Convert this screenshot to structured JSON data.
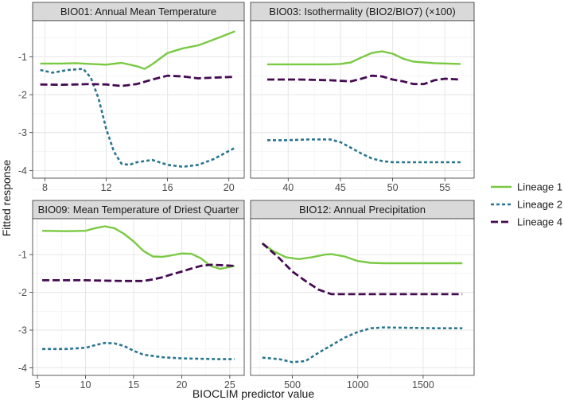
{
  "chart_data": {
    "type": "line",
    "xlabel": "BIOCLIM predictor value",
    "ylabel": "Fitted response",
    "y_ticks": [
      -1,
      -2,
      -3,
      -4
    ],
    "legend": {
      "placement": "right",
      "entries": [
        {
          "name": "Lineage 1",
          "color": "#7ac943",
          "dash": "solid"
        },
        {
          "name": "Lineage 2",
          "color": "#2a7590",
          "dash": "dotted"
        },
        {
          "name": "Lineage 4",
          "color": "#440a52",
          "dash": "dashed"
        }
      ]
    },
    "panels": [
      {
        "title": "BIO01: Annual Mean Temperature",
        "xlim": [
          7.2,
          21
        ],
        "ylim": [
          -4.2,
          -0.05
        ],
        "x_ticks": [
          8,
          12,
          16,
          20
        ],
        "series": [
          {
            "name": "Lineage 1",
            "x": [
              7.7,
              9,
              10,
              11,
              12,
              13,
              14,
              14.5,
              15,
              16,
              17,
              18,
              19,
              20.4
            ],
            "y": [
              -1.18,
              -1.18,
              -1.17,
              -1.19,
              -1.21,
              -1.16,
              -1.25,
              -1.32,
              -1.2,
              -0.9,
              -0.78,
              -0.7,
              -0.55,
              -0.33
            ]
          },
          {
            "name": "Lineage 2",
            "x": [
              7.7,
              8.5,
              9.5,
              10.5,
              11,
              11.5,
              12,
              12.5,
              13,
              13.5,
              14,
              15,
              16,
              17,
              18,
              19,
              20.4
            ],
            "y": [
              -1.35,
              -1.42,
              -1.35,
              -1.32,
              -1.55,
              -2.1,
              -2.9,
              -3.5,
              -3.82,
              -3.85,
              -3.78,
              -3.72,
              -3.85,
              -3.9,
              -3.85,
              -3.7,
              -3.4
            ]
          },
          {
            "name": "Lineage 4",
            "x": [
              7.7,
              9,
              10,
              11,
              12,
              13,
              14,
              15,
              16,
              17,
              18,
              19,
              20.4
            ],
            "y": [
              -1.73,
              -1.74,
              -1.73,
              -1.72,
              -1.73,
              -1.77,
              -1.72,
              -1.6,
              -1.5,
              -1.52,
              -1.57,
              -1.55,
              -1.53
            ]
          }
        ]
      },
      {
        "title": "BIO03: Isothermality (BIO2/BIO7) (×100)",
        "xlim": [
          36.4,
          57.8
        ],
        "ylim": [
          -4.2,
          -0.05
        ],
        "x_ticks": [
          40,
          45,
          50,
          55
        ],
        "series": [
          {
            "name": "Lineage 1",
            "x": [
              38,
              41,
              44,
              45,
              46,
              47,
              48,
              49,
              50,
              51,
              52,
              54,
              56.5
            ],
            "y": [
              -1.2,
              -1.2,
              -1.2,
              -1.19,
              -1.15,
              -1.02,
              -0.9,
              -0.86,
              -0.92,
              -1.05,
              -1.13,
              -1.17,
              -1.19
            ]
          },
          {
            "name": "Lineage 2",
            "x": [
              38,
              40,
              42,
              44,
              45,
              46,
              47,
              48,
              49,
              50,
              52,
              54,
              56.5
            ],
            "y": [
              -3.2,
              -3.2,
              -3.18,
              -3.18,
              -3.25,
              -3.4,
              -3.55,
              -3.68,
              -3.75,
              -3.78,
              -3.78,
              -3.78,
              -3.78
            ]
          },
          {
            "name": "Lineage 4",
            "x": [
              38,
              41,
              44,
              46,
              47,
              48,
              49,
              50,
              51,
              52,
              53,
              54,
              55,
              56.5
            ],
            "y": [
              -1.6,
              -1.6,
              -1.62,
              -1.65,
              -1.58,
              -1.5,
              -1.52,
              -1.6,
              -1.65,
              -1.72,
              -1.72,
              -1.62,
              -1.58,
              -1.6
            ]
          }
        ]
      },
      {
        "title": "BIO09: Mean Temperature of Driest Quarter",
        "xlim": [
          4.5,
          26.5
        ],
        "ylim": [
          -4.2,
          -0.05
        ],
        "x_ticks": [
          5,
          10,
          15,
          20,
          25
        ],
        "series": [
          {
            "name": "Lineage 1",
            "x": [
              5.5,
              8,
              10,
              11,
              12,
              13,
              14,
              15,
              16,
              17,
              18,
              19,
              20,
              21,
              22,
              23,
              24,
              25.5
            ],
            "y": [
              -0.37,
              -0.38,
              -0.37,
              -0.3,
              -0.25,
              -0.3,
              -0.45,
              -0.65,
              -0.9,
              -1.05,
              -1.06,
              -1.02,
              -0.97,
              -0.98,
              -1.1,
              -1.3,
              -1.38,
              -1.3
            ]
          },
          {
            "name": "Lineage 2",
            "x": [
              5.5,
              8,
              10,
              11,
              12,
              13,
              14,
              15,
              16,
              18,
              20,
              22,
              24,
              25.5
            ],
            "y": [
              -3.5,
              -3.5,
              -3.47,
              -3.4,
              -3.34,
              -3.35,
              -3.42,
              -3.55,
              -3.65,
              -3.72,
              -3.75,
              -3.76,
              -3.77,
              -3.77
            ]
          },
          {
            "name": "Lineage 4",
            "x": [
              5.5,
              8,
              10,
              12,
              14,
              16,
              17,
              18,
              19,
              20,
              21,
              22,
              23,
              24,
              25.5
            ],
            "y": [
              -1.68,
              -1.68,
              -1.68,
              -1.69,
              -1.7,
              -1.7,
              -1.66,
              -1.6,
              -1.52,
              -1.45,
              -1.37,
              -1.3,
              -1.27,
              -1.28,
              -1.3
            ]
          }
        ]
      },
      {
        "title": "BIO12: Annual Precipitation",
        "xlim": [
          180,
          1890
        ],
        "ylim": [
          -4.2,
          -0.05
        ],
        "x_ticks": [
          500,
          1000,
          1500
        ],
        "series": [
          {
            "name": "Lineage 1",
            "x": [
              270,
              350,
              450,
              550,
              650,
              750,
              800,
              900,
              1000,
              1100,
              1200,
              1400,
              1600,
              1800
            ],
            "y": [
              -0.7,
              -0.9,
              -1.07,
              -1.12,
              -1.07,
              -1.0,
              -0.99,
              -1.05,
              -1.17,
              -1.22,
              -1.23,
              -1.23,
              -1.23,
              -1.23
            ]
          },
          {
            "name": "Lineage 2",
            "x": [
              270,
              400,
              500,
              600,
              700,
              800,
              900,
              1000,
              1100,
              1200,
              1400,
              1600,
              1800
            ],
            "y": [
              -3.73,
              -3.77,
              -3.85,
              -3.82,
              -3.6,
              -3.4,
              -3.2,
              -3.05,
              -2.95,
              -2.93,
              -2.94,
              -2.95,
              -2.95
            ]
          },
          {
            "name": "Lineage 4",
            "x": [
              270,
              400,
              500,
              600,
              700,
              800,
              900,
              1000,
              1200,
              1400,
              1600,
              1800
            ],
            "y": [
              -0.7,
              -1.1,
              -1.45,
              -1.7,
              -1.93,
              -2.05,
              -2.05,
              -2.05,
              -2.05,
              -2.05,
              -2.05,
              -2.05
            ]
          }
        ]
      }
    ]
  }
}
